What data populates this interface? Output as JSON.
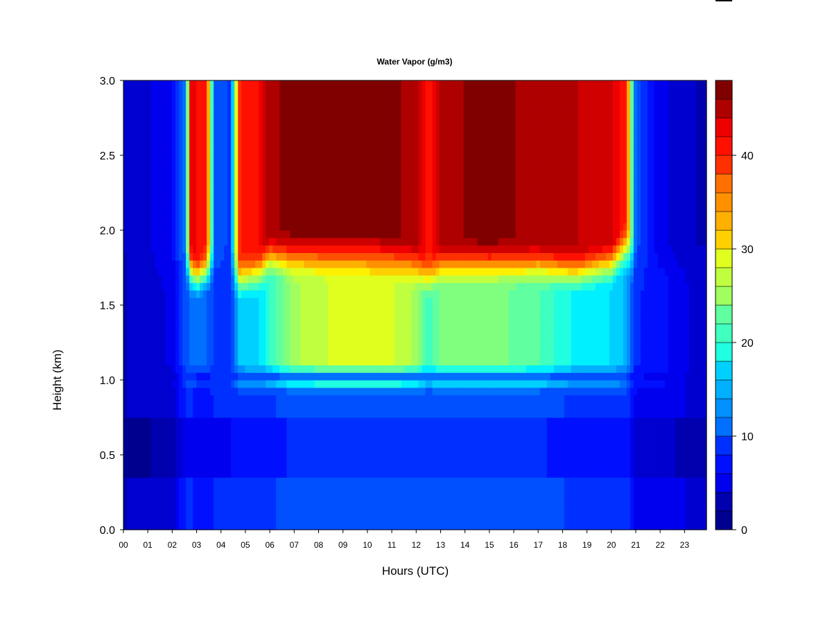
{
  "chart_data": {
    "type": "heatmap",
    "title": "Water Vapor (g/m3)",
    "xlabel": "Hours (UTC)",
    "ylabel": "Height (km)",
    "x_ticks": [
      "00",
      "01",
      "02",
      "03",
      "04",
      "05",
      "06",
      "07",
      "08",
      "09",
      "10",
      "11",
      "12",
      "13",
      "14",
      "15",
      "16",
      "17",
      "18",
      "19",
      "20",
      "21",
      "22",
      "23"
    ],
    "x_tick_values": [
      0,
      1,
      2,
      3,
      4,
      5,
      6,
      7,
      8,
      9,
      10,
      11,
      12,
      13,
      14,
      15,
      16,
      17,
      18,
      19,
      20,
      21,
      22,
      23
    ],
    "xlim": [
      0,
      23.9
    ],
    "y_ticks": [
      "0.0",
      "0.5",
      "1.0",
      "1.5",
      "2.0",
      "2.5",
      "3.0"
    ],
    "y_tick_values": [
      0.0,
      0.5,
      1.0,
      1.5,
      2.0,
      2.5,
      3.0
    ],
    "ylim": [
      0,
      3.0
    ],
    "colorbar": {
      "ticks": [
        "0",
        "10",
        "20",
        "30",
        "40"
      ],
      "tick_values": [
        0,
        10,
        20,
        30,
        40
      ],
      "range": [
        0,
        48
      ],
      "levels": 24,
      "colors": [
        "#00008F",
        "#0000AF",
        "#0000CF",
        "#0000EF",
        "#0010FF",
        "#0030FF",
        "#0050FF",
        "#0070FF",
        "#0090FF",
        "#00B0FF",
        "#00D0FF",
        "#00F0FF",
        "#20FFDF",
        "#40FFBF",
        "#60FF9F",
        "#80FF7F",
        "#A0FF5F",
        "#C0FF3F",
        "#E0FF1F",
        "#FFF000",
        "#FFD000",
        "#FFB000",
        "#FF9000",
        "#FF7000",
        "#FF5000",
        "#FF3000",
        "#FF1000",
        "#EF0000",
        "#CF0000",
        "#AF0000",
        "#800000"
      ]
    },
    "column_profiles": [
      {
        "x": 0.0,
        "surface": 3,
        "boundary": 3,
        "top": 3,
        "break_km": 1.8
      },
      {
        "x": 2.0,
        "surface": 4,
        "boundary": 5,
        "top": 6,
        "break_km": 1.8
      },
      {
        "x": 2.55,
        "surface": 8,
        "boundary": 10,
        "top": 12,
        "break_km": 1.8
      },
      {
        "x": 2.75,
        "surface": 8,
        "boundary": 12,
        "top": 42,
        "break_km": 1.75
      },
      {
        "x": 3.0,
        "surface": 7,
        "boundary": 11,
        "top": 42,
        "break_km": 1.7
      },
      {
        "x": 3.4,
        "surface": 7,
        "boundary": 11,
        "top": 40,
        "break_km": 1.75
      },
      {
        "x": 3.75,
        "surface": 8,
        "boundary": 9,
        "top": 10,
        "break_km": 1.8
      },
      {
        "x": 4.4,
        "surface": 8,
        "boundary": 9,
        "top": 9,
        "break_km": 1.8
      },
      {
        "x": 4.75,
        "surface": 9,
        "boundary": 16,
        "top": 40,
        "break_km": 1.7
      },
      {
        "x": 5.6,
        "surface": 9,
        "boundary": 17,
        "top": 42,
        "break_km": 1.75
      },
      {
        "x": 6.0,
        "surface": 9,
        "boundary": 20,
        "top": 46,
        "break_km": 1.85
      },
      {
        "x": 7.0,
        "surface": 10,
        "boundary": 26,
        "top": 47,
        "break_km": 1.85
      },
      {
        "x": 8.5,
        "surface": 10,
        "boundary": 28,
        "top": 47,
        "break_km": 1.85
      },
      {
        "x": 10.5,
        "surface": 10,
        "boundary": 29,
        "top": 47,
        "break_km": 1.85
      },
      {
        "x": 12.0,
        "surface": 10,
        "boundary": 26,
        "top": 46,
        "break_km": 1.8
      },
      {
        "x": 12.5,
        "surface": 10,
        "boundary": 20,
        "top": 40,
        "break_km": 1.7
      },
      {
        "x": 13.0,
        "surface": 10,
        "boundary": 24,
        "top": 46,
        "break_km": 1.8
      },
      {
        "x": 15.0,
        "surface": 10,
        "boundary": 24,
        "top": 47,
        "break_km": 1.8
      },
      {
        "x": 17.0,
        "surface": 10,
        "boundary": 22,
        "top": 46,
        "break_km": 1.8
      },
      {
        "x": 18.5,
        "surface": 9,
        "boundary": 18,
        "top": 45,
        "break_km": 1.75
      },
      {
        "x": 20.0,
        "surface": 9,
        "boundary": 17,
        "top": 44,
        "break_km": 1.8
      },
      {
        "x": 20.6,
        "surface": 9,
        "boundary": 15,
        "top": 40,
        "break_km": 1.9
      },
      {
        "x": 21.0,
        "surface": 6,
        "boundary": 8,
        "top": 10,
        "break_km": 1.8
      },
      {
        "x": 22.0,
        "surface": 6,
        "boundary": 7,
        "top": 5,
        "break_km": 1.8
      },
      {
        "x": 23.5,
        "surface": 4,
        "boundary": 4,
        "top": 3,
        "break_km": 1.8
      }
    ]
  }
}
